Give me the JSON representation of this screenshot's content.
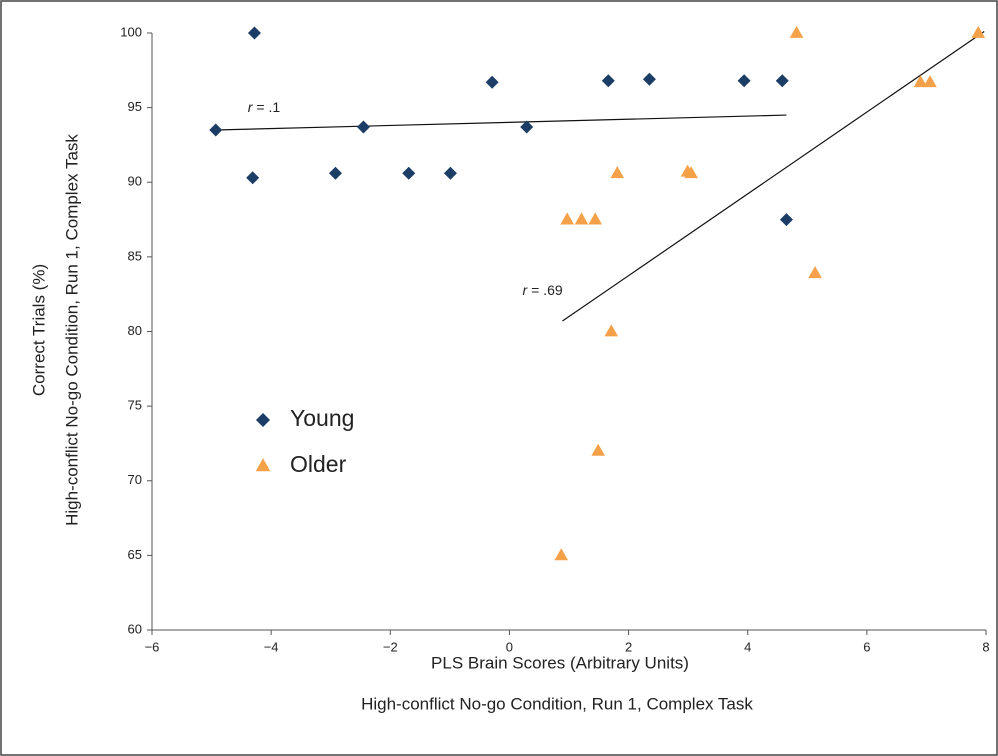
{
  "chart_data": {
    "type": "scatter",
    "x_label": [
      "PLS Brain Scores (Arbitrary Units)",
      "High-conflict No-go Condition, Run 1, Complex Task"
    ],
    "y_label": [
      "Correct Trials (%)",
      "High-conflict No-go Condition, Run 1, Complex Task"
    ],
    "xlim": [
      -6,
      8
    ],
    "xticks": [
      {
        "value": -6,
        "label": "−6"
      },
      {
        "value": -4,
        "label": "−4"
      },
      {
        "value": -2,
        "label": "−2"
      },
      0,
      2,
      4,
      6,
      8
    ],
    "ylim": [
      60,
      100
    ],
    "yticks": [
      60,
      65,
      70,
      75,
      80,
      85,
      90,
      95,
      100
    ],
    "legend": "left",
    "series": [
      {
        "name": "Young",
        "color": "#1c3d66",
        "marker": "diamond",
        "x": [
          -4.93,
          -4.28,
          -4.31,
          -2.92,
          -2.45,
          -1.69,
          -0.99,
          -0.29,
          0.29,
          1.66,
          2.35,
          3.94,
          4.58,
          4.65
        ],
        "values": [
          93.5,
          100,
          90.3,
          90.6,
          93.7,
          90.6,
          90.6,
          96.7,
          93.7,
          96.8,
          96.9,
          96.8,
          96.8,
          87.5
        ]
      },
      {
        "name": "Older",
        "color": "#f5a14a",
        "marker": "triangle",
        "x": [
          4.82,
          7.87,
          6.9,
          7.06,
          1.81,
          2.99,
          3.05,
          0.97,
          1.21,
          1.44,
          5.13,
          1.71,
          1.49,
          0.87
        ],
        "values": [
          100,
          100,
          96.7,
          96.7,
          90.6,
          90.7,
          90.6,
          87.5,
          87.5,
          87.5,
          83.9,
          80.0,
          72.0,
          65.0
        ]
      }
    ],
    "trend_lines": [
      {
        "x": [
          -4.93,
          4.65
        ],
        "values": [
          93.5,
          94.5
        ],
        "annotation": {
          "symbol": "r",
          "text": "= .1"
        }
      },
      {
        "x": [
          0.89,
          7.97
        ],
        "values": [
          80.7,
          100.1
        ],
        "annotation": {
          "symbol": "r",
          "text": "= .69"
        }
      }
    ]
  }
}
